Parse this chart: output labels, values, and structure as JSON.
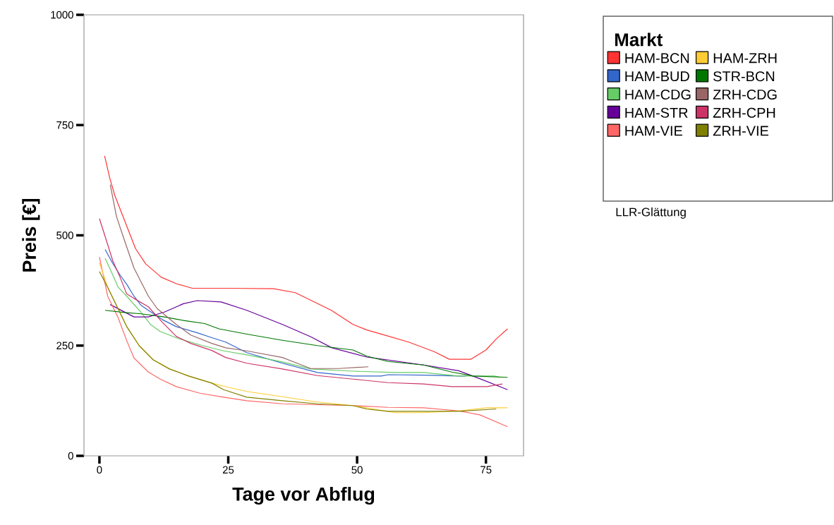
{
  "chart_data": {
    "type": "line",
    "xlabel": "Tage vor Abflug",
    "ylabel": "Preis [€]",
    "legend_title": "Markt",
    "legend": "right",
    "annotations": [
      "LLR-Glättung"
    ],
    "xlim": [
      -3,
      82.3
    ],
    "ylim": [
      0,
      1000
    ],
    "xticks": [
      0,
      25,
      50,
      75
    ],
    "yticks": [
      0,
      250,
      500,
      750,
      1000
    ],
    "grid": false,
    "marker": "none",
    "line_style": "solid",
    "series": [
      {
        "name": "HAM-BCN",
        "color": "#ff3333",
        "x": [
          1,
          2,
          3,
          5,
          7,
          9,
          12,
          15,
          18,
          25,
          33.8,
          38,
          45,
          49.2,
          52,
          55,
          60,
          65,
          67.9,
          72.1,
          75,
          77,
          79.2
        ],
        "values": [
          680,
          630,
          590,
          530,
          470,
          435,
          405,
          390,
          380,
          380,
          379,
          370,
          330,
          298,
          285,
          275,
          258,
          236,
          219,
          219,
          240,
          265,
          288
        ]
      },
      {
        "name": "HAM-BUD",
        "color": "#3366cc",
        "x": [
          1.1,
          2.6,
          4,
          5.3,
          6.7,
          8.1,
          9.5,
          12.2,
          14.9,
          19,
          21.8,
          24.5,
          28.6,
          35.5,
          42.3,
          49.2,
          54.7,
          56,
          62.9,
          69.7,
          71.1
        ],
        "values": [
          468,
          436,
          410,
          389,
          362,
          341,
          330,
          309,
          293,
          279,
          268,
          258,
          234,
          210,
          189,
          181,
          181,
          184,
          183,
          181,
          181
        ]
      },
      {
        "name": "HAM-CDG",
        "color": "#66cc66",
        "x": [
          1.1,
          2.6,
          3.6,
          5.3,
          8.1,
          9.9,
          11.8,
          15.3,
          20,
          24.1,
          28.6,
          35.5,
          41,
          49.2,
          57.4,
          62.9,
          69.7,
          76.6,
          77.9
        ],
        "values": [
          448,
          410,
          383,
          362,
          325,
          298,
          282,
          266,
          250,
          238,
          229,
          213,
          197,
          192,
          189,
          189,
          181,
          181,
          178
        ]
      },
      {
        "name": "HAM-STR",
        "color": "#660099",
        "x": [
          2.1,
          6.7,
          9.5,
          12.6,
          16.3,
          19,
          23.6,
          28.6,
          35.5,
          41,
          45.1,
          51.9,
          62.9,
          69.7,
          73.8,
          79.2
        ],
        "values": [
          343,
          315,
          315,
          326,
          345,
          352,
          349,
          330,
          298,
          270,
          245,
          224,
          206,
          193,
          175,
          150
        ]
      },
      {
        "name": "HAM-VIE",
        "color": "#ff6666",
        "x": [
          0,
          1.6,
          3.6,
          5.3,
          6.7,
          9.5,
          11.8,
          14.9,
          19.5,
          24.1,
          28.6,
          35.5,
          49.2,
          56,
          62.9,
          69.7,
          73.8,
          79.2
        ],
        "values": [
          451,
          362,
          314,
          261,
          222,
          190,
          174,
          157,
          142,
          133,
          125,
          118,
          114,
          110,
          109,
          102,
          93,
          66
        ]
      },
      {
        "name": "HAM-ZRH",
        "color": "#ffcc33",
        "x": [
          0,
          1.6,
          3.6,
          5.3,
          7.7,
          10.4,
          13.6,
          17.3,
          21.8,
          24.1,
          28.6,
          35.5,
          42.3,
          49.2,
          57.4,
          62.9,
          69.7,
          75.2,
          79.2
        ],
        "values": [
          438,
          382,
          334,
          293,
          250,
          218,
          197,
          181,
          165,
          158,
          146,
          134,
          122,
          114,
          98,
          98,
          102,
          109,
          109
        ]
      },
      {
        "name": "STR-BCN",
        "color": "#007700",
        "x": [
          1.1,
          4.9,
          8.1,
          12.6,
          16.3,
          20.4,
          23.2,
          28.6,
          35.5,
          42.3,
          49.2,
          51.9,
          56,
          62.9,
          68.4,
          72.5,
          79.2
        ],
        "values": [
          330,
          325,
          322,
          315,
          307,
          300,
          288,
          276,
          262,
          250,
          240,
          226,
          214,
          206,
          190,
          181,
          178
        ]
      },
      {
        "name": "ZRH-CDG",
        "color": "#996666",
        "x": [
          2.1,
          3.3,
          4.7,
          6.7,
          9.5,
          11.2,
          14.9,
          17.7,
          21.8,
          24.5,
          28.6,
          35.5,
          41,
          46.4,
          52.2
        ],
        "values": [
          615,
          543,
          494,
          426,
          362,
          334,
          298,
          274,
          255,
          245,
          238,
          223,
          198,
          198,
          202
        ]
      },
      {
        "name": "ZRH-CPH",
        "color": "#cc3366",
        "x": [
          0,
          1.2,
          2.6,
          4,
          5.3,
          6.7,
          9.5,
          12.2,
          14.9,
          17.7,
          21.8,
          24.5,
          28.6,
          35.5,
          42.3,
          49.2,
          56,
          62.9,
          68.4,
          75.2,
          78.2
        ],
        "values": [
          538,
          494,
          442,
          405,
          367,
          357,
          338,
          303,
          271,
          255,
          239,
          223,
          210,
          197,
          182,
          174,
          166,
          163,
          157,
          157,
          163
        ]
      },
      {
        "name": "ZRH-VIE",
        "color": "#808000",
        "x": [
          0,
          1.6,
          3.6,
          5.3,
          7.7,
          10.4,
          13.6,
          17.3,
          21.8,
          24.1,
          28.6,
          35.5,
          42.3,
          49.2,
          51.9,
          56,
          69.7,
          76.6,
          77
        ],
        "values": [
          418,
          382,
          334,
          293,
          250,
          218,
          197,
          181,
          165,
          150,
          133,
          125,
          118,
          114,
          106,
          101,
          101,
          106,
          106
        ]
      }
    ]
  }
}
